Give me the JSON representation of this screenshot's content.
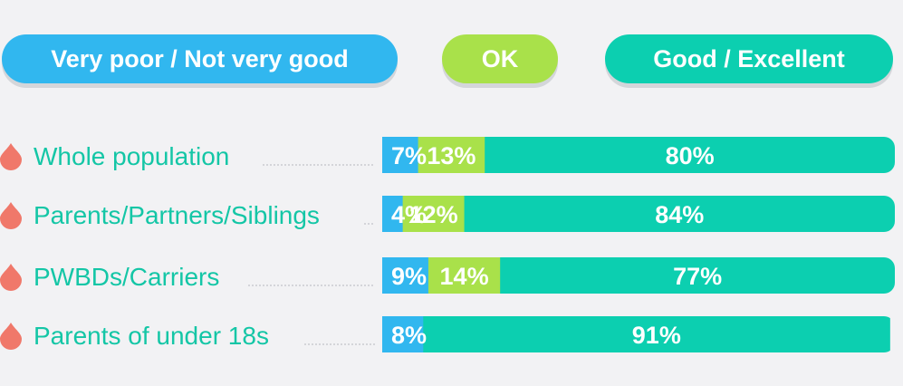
{
  "colors": {
    "poor": "#31b7ef",
    "ok": "#a9e14a",
    "good": "#0ccfb0",
    "label_text": "#14c6a6",
    "marker": "#f0786a",
    "leader": "#c9cbd0",
    "value_text": "#ffffff",
    "shadow": "#d4d6da"
  },
  "chart_data": {
    "type": "bar",
    "orientation": "horizontal",
    "stacked": true,
    "normalized_to": 100,
    "unit": "%",
    "categories": [
      "Whole population",
      "Parents/Partners/Siblings",
      "PWBDs/Carriers",
      "Parents of under 18s"
    ],
    "series": [
      {
        "name": "Very poor / Not very good",
        "color_key": "poor",
        "values": [
          7,
          4,
          9,
          8
        ]
      },
      {
        "name": "OK",
        "color_key": "ok",
        "values": [
          13,
          12,
          14,
          null
        ]
      },
      {
        "name": "Good / Excellent",
        "color_key": "good",
        "values": [
          80,
          84,
          77,
          91
        ]
      }
    ],
    "data_labels": [
      [
        "7%",
        "13%",
        "80%"
      ],
      [
        "4%",
        "12%",
        "84%"
      ],
      [
        "9%",
        "14%",
        "77%"
      ],
      [
        "8%",
        "",
        "91%"
      ]
    ],
    "legend_position": "top"
  }
}
